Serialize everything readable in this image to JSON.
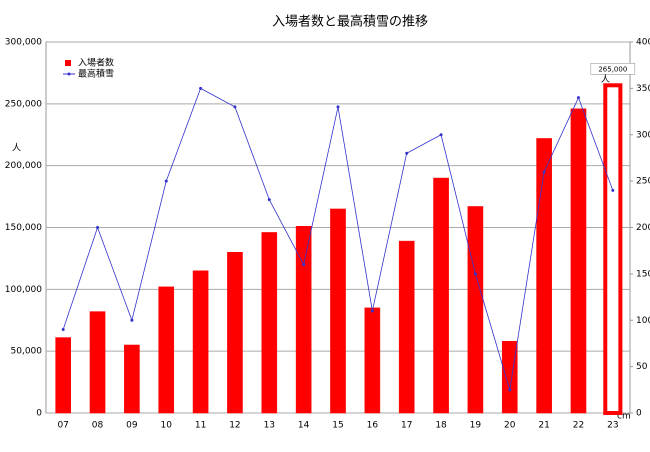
{
  "chart_data": {
    "type": "bar-line",
    "title": "入場者数と最高積雪の推移",
    "categories": [
      "07",
      "08",
      "09",
      "10",
      "11",
      "12",
      "13",
      "14",
      "15",
      "16",
      "17",
      "18",
      "19",
      "20",
      "21",
      "22",
      "23"
    ],
    "series": [
      {
        "name": "入場者数",
        "color": "#ff0000",
        "values": [
          61000,
          82000,
          55000,
          102000,
          115000,
          130000,
          146000,
          151000,
          165000,
          85000,
          139000,
          190000,
          167000,
          58000,
          222000,
          246000,
          265000
        ],
        "value_labels": [
          null,
          null,
          null,
          null,
          null,
          null,
          null,
          null,
          null,
          null,
          null,
          null,
          null,
          null,
          null,
          null,
          "265,000"
        ]
      },
      {
        "name": "最高積雪",
        "color": "#3333cc",
        "axis": "y2",
        "values": [
          90,
          200,
          100,
          250,
          350,
          330,
          230,
          160,
          330,
          110,
          280,
          300,
          150,
          25,
          260,
          340,
          240
        ]
      }
    ],
    "value_label_unit": "人",
    "outlined_categories": [
      "23"
    ],
    "ylabel": "人",
    "y2label": "cm",
    "ylim": [
      0,
      300000
    ],
    "yticks": [
      0,
      {
        "value": 50000,
        "label": "50,000"
      },
      {
        "value": 100000,
        "label": "100,000"
      },
      {
        "value": 150000,
        "label": "150,000"
      },
      {
        "value": 200000,
        "label": "200,000"
      },
      {
        "value": 250000,
        "label": "250,000"
      },
      {
        "value": 300000,
        "label": "300,000"
      }
    ],
    "y2lim": [
      0,
      400
    ],
    "y2ticks": [
      0,
      50,
      100,
      150,
      200,
      250,
      300,
      350,
      400
    ],
    "grid": true,
    "legend": "top-left"
  }
}
